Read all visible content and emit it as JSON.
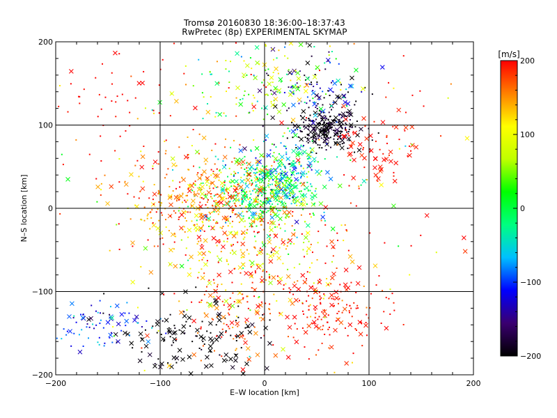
{
  "chart_data": {
    "type": "scatter",
    "title": "Tromsø 20160830 18:36:00–18:37:43",
    "subtitle": "RwPretec (8p) EXPERIMENTAL SKYMAP",
    "xlabel": "E–W location [km]",
    "ylabel": "N–S location [km]",
    "xlim": [
      -200,
      200
    ],
    "ylim": [
      -200,
      200
    ],
    "x_ticks": [
      -200,
      -100,
      0,
      100,
      200
    ],
    "y_ticks": [
      -200,
      -100,
      0,
      100,
      200
    ],
    "x_tick_labels": [
      "−200",
      "−100",
      "0",
      "100",
      "200"
    ],
    "y_tick_labels": [
      "−200",
      "−100",
      "0",
      "100",
      "200"
    ],
    "grid": true,
    "colorbar": {
      "label": "[m/s]",
      "range": [
        -200,
        200
      ],
      "ticks": [
        200,
        100,
        0,
        -100,
        -200
      ],
      "tick_labels": [
        "200",
        "100",
        "0",
        "−100",
        "−200"
      ],
      "colormap": [
        "#000000",
        "#3a0070",
        "#0000ff",
        "#00c0ff",
        "#00ff80",
        "#00ff00",
        "#c0ff00",
        "#ffff00",
        "#ff8000",
        "#ff0000"
      ]
    },
    "marker_types": [
      "dot",
      "x"
    ],
    "clusters": [
      {
        "x": 60,
        "y": 95,
        "sx": 15,
        "sy": 12,
        "v": -195,
        "sv": 15,
        "n": 260,
        "xfrac": 0.3
      },
      {
        "x": 45,
        "y": 140,
        "sx": 28,
        "sy": 20,
        "v": -140,
        "sv": 60,
        "n": 110,
        "xfrac": 0.3
      },
      {
        "x": 0,
        "y": 20,
        "sx": 28,
        "sy": 22,
        "v": 0,
        "sv": 50,
        "n": 420,
        "xfrac": 0.25
      },
      {
        "x": 20,
        "y": 50,
        "sx": 20,
        "sy": 25,
        "v": -60,
        "sv": 60,
        "n": 160,
        "xfrac": 0.25
      },
      {
        "x": -55,
        "y": 10,
        "sx": 40,
        "sy": 30,
        "v": 160,
        "sv": 35,
        "n": 380,
        "xfrac": 0.25
      },
      {
        "x": -10,
        "y": -60,
        "sx": 45,
        "sy": 35,
        "v": 130,
        "sv": 50,
        "n": 260,
        "xfrac": 0.25
      },
      {
        "x": -5,
        "y": 150,
        "sx": 40,
        "sy": 25,
        "v": 60,
        "sv": 70,
        "n": 140,
        "xfrac": 0.3
      },
      {
        "x": 60,
        "y": -120,
        "sx": 25,
        "sy": 25,
        "v": 195,
        "sv": 10,
        "n": 150,
        "xfrac": 0.3
      },
      {
        "x": -70,
        "y": -160,
        "sx": 40,
        "sy": 25,
        "v": -200,
        "sv": 8,
        "n": 140,
        "xfrac": 0.55
      },
      {
        "x": -155,
        "y": -140,
        "sx": 25,
        "sy": 15,
        "v": -100,
        "sv": 30,
        "n": 80,
        "xfrac": 0.25
      },
      {
        "x": 110,
        "y": 75,
        "sx": 22,
        "sy": 20,
        "v": 195,
        "sv": 10,
        "n": 70,
        "xfrac": 0.5
      },
      {
        "x": -145,
        "y": 130,
        "sx": 40,
        "sy": 40,
        "v": 200,
        "sv": 5,
        "n": 60,
        "xfrac": 0.1
      },
      {
        "x": -30,
        "y": -130,
        "sx": 25,
        "sy": 30,
        "v": 180,
        "sv": 20,
        "n": 90,
        "xfrac": 0.3
      },
      {
        "x": 0,
        "y": 0,
        "sx": 110,
        "sy": 110,
        "v": 150,
        "sv": 80,
        "n": 200,
        "xfrac": 0.2
      }
    ]
  }
}
